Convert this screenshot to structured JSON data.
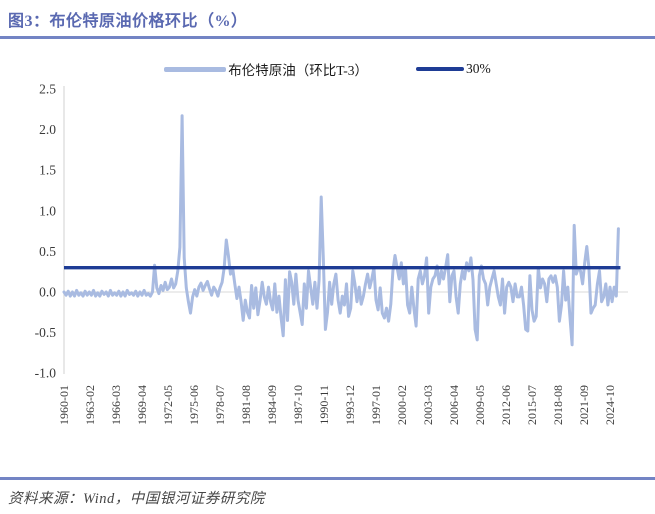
{
  "page": {
    "title": "图3：布伦特原油价格环比（%）",
    "source": "资料来源：Wind，中国银河证券研究院"
  },
  "colors": {
    "title_blue": "#5a69b1",
    "rule_blue": "#7384c4",
    "series_light": "#a9bbe1",
    "reference_navy": "#1e3c95",
    "axis_gray": "#d9d9d9",
    "tick_text": "#3a3a3a"
  },
  "chart_data": {
    "type": "line",
    "title": "图3：布伦特原油价格环比（%）",
    "source": "资料来源：Wind，中国银河证券研究院",
    "legend": {
      "brent": "布伦特原油（环比T-3）",
      "ref": "30%"
    },
    "ylim": [
      -1.0,
      2.5
    ],
    "ytick_step": 0.5,
    "yticks": [
      2.5,
      2.0,
      1.5,
      1.0,
      0.5,
      0.0,
      -0.5,
      -1.0
    ],
    "xticks": [
      "1960-01",
      "1963-02",
      "1966-03",
      "1969-04",
      "1972-05",
      "1975-06",
      "1978-07",
      "1981-08",
      "1984-09",
      "1987-10",
      "1990-11",
      "1993-12",
      "1997-01",
      "2000-02",
      "2003-03",
      "2006-04",
      "2009-05",
      "2012-06",
      "2015-07",
      "2018-08",
      "2021-09",
      "2024-10"
    ],
    "xtick_interval_months": 37,
    "grid": "off",
    "legend_position": "top",
    "reference_line": {
      "label": "30%",
      "value": 0.3
    },
    "series": {
      "name": "布伦特原油（环比T-3）",
      "start": "1960-01",
      "step_months": 3,
      "note": "values estimated from pixels; quarterly sampling of monthly curve",
      "values": [
        0.0,
        -0.04,
        0.01,
        -0.05,
        0.0,
        -0.05,
        0.02,
        -0.04,
        -0.01,
        -0.05,
        0.01,
        -0.04,
        0.0,
        -0.04,
        0.02,
        -0.05,
        -0.01,
        -0.05,
        0.01,
        -0.03,
        0.0,
        -0.05,
        0.02,
        -0.04,
        -0.01,
        -0.04,
        0.01,
        -0.05,
        0.0,
        -0.05,
        0.02,
        -0.03,
        -0.01,
        -0.04,
        0.01,
        -0.05,
        0.0,
        -0.04,
        0.02,
        -0.04,
        -0.02,
        -0.05,
        0.0,
        0.33,
        0.05,
        -0.02,
        0.08,
        0.02,
        0.12,
        0.03,
        0.06,
        0.16,
        0.05,
        0.1,
        0.26,
        0.55,
        2.17,
        0.42,
        0.05,
        -0.12,
        -0.26,
        -0.06,
        0.03,
        -0.05,
        0.06,
        0.11,
        0.02,
        0.08,
        0.13,
        0.04,
        -0.04,
        0.06,
        0.02,
        -0.05,
        0.05,
        0.12,
        0.3,
        0.64,
        0.45,
        0.22,
        0.3,
        0.1,
        -0.08,
        0.06,
        -0.12,
        -0.35,
        -0.1,
        -0.25,
        -0.32,
        0.08,
        -0.2,
        0.05,
        -0.28,
        -0.1,
        0.12,
        -0.06,
        -0.15,
        0.06,
        -0.12,
        -0.22,
        0.1,
        -0.25,
        -0.05,
        -0.32,
        -0.54,
        0.15,
        -0.35,
        0.25,
        0.12,
        -0.15,
        0.22,
        -0.1,
        -0.25,
        -0.4,
        0.1,
        -0.2,
        0.26,
        0.06,
        -0.15,
        0.12,
        -0.2,
        0.15,
        1.17,
        0.42,
        -0.46,
        -0.25,
        0.12,
        -0.15,
        0.1,
        0.22,
        -0.1,
        -0.26,
        -0.05,
        -0.16,
        0.1,
        -0.3,
        -0.2,
        0.26,
        0.1,
        -0.12,
        0.06,
        -0.15,
        -0.05,
        0.1,
        0.22,
        0.05,
        0.16,
        0.3,
        -0.1,
        -0.22,
        0.05,
        -0.26,
        -0.32,
        -0.2,
        -0.36,
        -0.15,
        0.26,
        0.45,
        0.3,
        0.16,
        0.36,
        0.1,
        0.3,
        -0.16,
        -0.26,
        0.06,
        -0.2,
        -0.42,
        0.16,
        0.26,
        0.1,
        0.2,
        0.42,
        -0.26,
        0.06,
        0.16,
        0.2,
        0.32,
        0.1,
        0.26,
        0.16,
        0.3,
        0.46,
        -0.12,
        0.2,
        0.26,
        -0.06,
        -0.26,
        0.1,
        0.26,
        0.16,
        0.36,
        0.26,
        0.42,
        0.15,
        -0.46,
        -0.59,
        0.2,
        0.32,
        0.16,
        0.1,
        -0.16,
        0.06,
        0.16,
        0.26,
        0.1,
        -0.06,
        -0.16,
        0.16,
        -0.26,
        0.06,
        0.12,
        0.06,
        -0.12,
        0.1,
        -0.06,
        -0.06,
        0.06,
        -0.16,
        -0.46,
        -0.48,
        0.2,
        -0.22,
        -0.36,
        -0.3,
        0.3,
        0.05,
        0.16,
        0.1,
        -0.12,
        0.16,
        0.2,
        0.12,
        0.2,
        0.06,
        -0.36,
        -0.16,
        0.26,
        -0.1,
        0.06,
        -0.3,
        -0.65,
        0.82,
        0.22,
        0.3,
        0.26,
        0.1,
        0.36,
        0.56,
        0.3,
        -0.26,
        -0.2,
        -0.16,
        0.1,
        0.26,
        -0.12,
        -0.06,
        0.1,
        -0.16,
        0.06,
        -0.12,
        0.06,
        -0.05,
        0.78
      ]
    }
  }
}
